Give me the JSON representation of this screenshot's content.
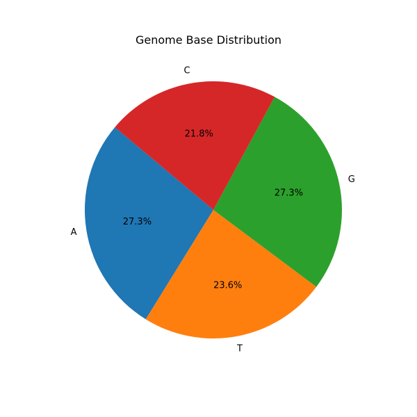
{
  "chart_data": {
    "type": "pie",
    "title": "Genome Base Distribution",
    "labels": [
      "A",
      "T",
      "G",
      "C"
    ],
    "values": [
      27.3,
      23.6,
      27.3,
      21.8
    ],
    "percent_labels": [
      "27.3%",
      "23.6%",
      "27.3%",
      "21.8%"
    ],
    "colors": [
      "#1f77b4",
      "#ff7f0e",
      "#2ca02c",
      "#d62728"
    ],
    "start_angle_deg": 140,
    "direction": "counterclockwise",
    "legend": "none"
  }
}
